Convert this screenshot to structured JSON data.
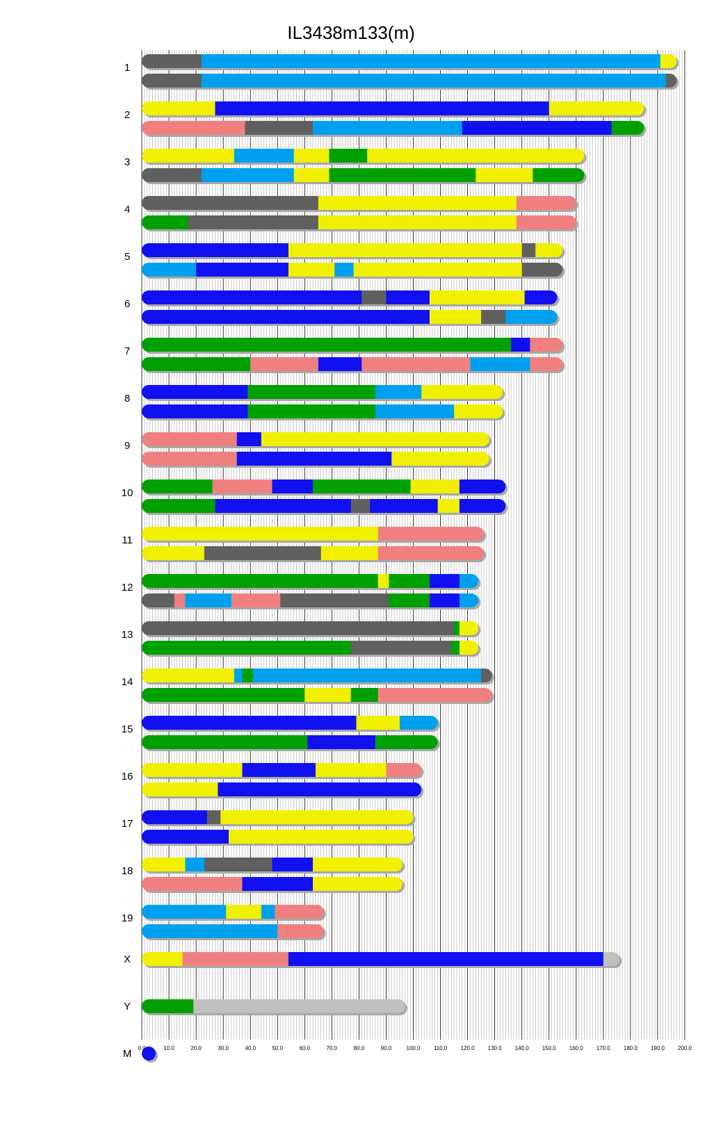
{
  "chart_data": {
    "type": "bar",
    "title": "IL3438m133(m)",
    "xlabel": "",
    "ylabel": "",
    "xlim": [
      0,
      200
    ],
    "x_ticks": [
      "0.0",
      "10.0",
      "20.0",
      "30.0",
      "40.0",
      "50.0",
      "60.0",
      "70.0",
      "80.0",
      "90.0",
      "100.0",
      "110.0",
      "120.0",
      "130.0",
      "140.0",
      "150.0",
      "160.0",
      "170.0",
      "180.0",
      "190.0",
      "200.0"
    ],
    "grid": true,
    "legend": "none",
    "colors": {
      "dgray": "#606060",
      "lblue": "#00a0f0",
      "yellow": "#f0f000",
      "blue": "#1010f0",
      "salmon": "#f08080",
      "green": "#00a000",
      "lgray": "#c0c0c0",
      "shadow": "#a8a8a8"
    },
    "chromosomes": [
      {
        "label": "1",
        "length": 197,
        "haplotypes": [
          [
            [
              0,
              22,
              "dgray"
            ],
            [
              22,
              191,
              "lblue"
            ],
            [
              191,
              197,
              "yellow"
            ]
          ],
          [
            [
              0,
              22,
              "dgray"
            ],
            [
              22,
              193,
              "lblue"
            ],
            [
              193,
              197,
              "dgray"
            ]
          ]
        ]
      },
      {
        "label": "2",
        "length": 185,
        "haplotypes": [
          [
            [
              0,
              27,
              "yellow"
            ],
            [
              27,
              150,
              "blue"
            ],
            [
              150,
              185,
              "yellow"
            ]
          ],
          [
            [
              0,
              38,
              "salmon"
            ],
            [
              38,
              63,
              "dgray"
            ],
            [
              63,
              118,
              "lblue"
            ],
            [
              118,
              173,
              "blue"
            ],
            [
              173,
              185,
              "green"
            ]
          ]
        ]
      },
      {
        "label": "3",
        "length": 163,
        "haplotypes": [
          [
            [
              0,
              34,
              "yellow"
            ],
            [
              34,
              56,
              "lblue"
            ],
            [
              56,
              69,
              "yellow"
            ],
            [
              69,
              83,
              "green"
            ],
            [
              83,
              163,
              "yellow"
            ]
          ],
          [
            [
              0,
              22,
              "dgray"
            ],
            [
              22,
              56,
              "lblue"
            ],
            [
              56,
              69,
              "yellow"
            ],
            [
              69,
              123,
              "green"
            ],
            [
              123,
              144,
              "yellow"
            ],
            [
              144,
              163,
              "green"
            ]
          ]
        ]
      },
      {
        "label": "4",
        "length": 160,
        "haplotypes": [
          [
            [
              0,
              65,
              "dgray"
            ],
            [
              65,
              138,
              "yellow"
            ],
            [
              138,
              160,
              "salmon"
            ]
          ],
          [
            [
              0,
              17,
              "green"
            ],
            [
              17,
              65,
              "dgray"
            ],
            [
              65,
              138,
              "yellow"
            ],
            [
              138,
              160,
              "salmon"
            ]
          ]
        ]
      },
      {
        "label": "5",
        "length": 155,
        "haplotypes": [
          [
            [
              0,
              54,
              "blue"
            ],
            [
              54,
              140,
              "yellow"
            ],
            [
              140,
              145,
              "dgray"
            ],
            [
              145,
              155,
              "yellow"
            ]
          ],
          [
            [
              0,
              20,
              "lblue"
            ],
            [
              20,
              54,
              "blue"
            ],
            [
              54,
              71,
              "yellow"
            ],
            [
              71,
              78,
              "lblue"
            ],
            [
              78,
              140,
              "yellow"
            ],
            [
              140,
              155,
              "dgray"
            ]
          ]
        ]
      },
      {
        "label": "6",
        "length": 153,
        "haplotypes": [
          [
            [
              0,
              81,
              "blue"
            ],
            [
              81,
              90,
              "dgray"
            ],
            [
              90,
              106,
              "blue"
            ],
            [
              106,
              141,
              "yellow"
            ],
            [
              141,
              153,
              "blue"
            ]
          ],
          [
            [
              0,
              106,
              "blue"
            ],
            [
              106,
              125,
              "yellow"
            ],
            [
              125,
              134,
              "dgray"
            ],
            [
              134,
              153,
              "lblue"
            ]
          ]
        ]
      },
      {
        "label": "7",
        "length": 155,
        "haplotypes": [
          [
            [
              0,
              136,
              "green"
            ],
            [
              136,
              143,
              "blue"
            ],
            [
              143,
              155,
              "salmon"
            ]
          ],
          [
            [
              0,
              40,
              "green"
            ],
            [
              40,
              65,
              "salmon"
            ],
            [
              65,
              81,
              "blue"
            ],
            [
              81,
              121,
              "salmon"
            ],
            [
              121,
              143,
              "lblue"
            ],
            [
              143,
              155,
              "salmon"
            ]
          ]
        ]
      },
      {
        "label": "8",
        "length": 133,
        "haplotypes": [
          [
            [
              0,
              39,
              "blue"
            ],
            [
              39,
              86,
              "green"
            ],
            [
              86,
              103,
              "lblue"
            ],
            [
              103,
              133,
              "yellow"
            ]
          ],
          [
            [
              0,
              39,
              "blue"
            ],
            [
              39,
              86,
              "green"
            ],
            [
              86,
              115,
              "lblue"
            ],
            [
              115,
              133,
              "yellow"
            ]
          ]
        ]
      },
      {
        "label": "9",
        "length": 128,
        "haplotypes": [
          [
            [
              0,
              35,
              "salmon"
            ],
            [
              35,
              44,
              "blue"
            ],
            [
              44,
              128,
              "yellow"
            ]
          ],
          [
            [
              0,
              35,
              "salmon"
            ],
            [
              35,
              92,
              "blue"
            ],
            [
              92,
              128,
              "yellow"
            ]
          ]
        ]
      },
      {
        "label": "10",
        "length": 134,
        "haplotypes": [
          [
            [
              0,
              26,
              "green"
            ],
            [
              26,
              48,
              "salmon"
            ],
            [
              48,
              63,
              "blue"
            ],
            [
              63,
              99,
              "green"
            ],
            [
              99,
              117,
              "yellow"
            ],
            [
              117,
              134,
              "blue"
            ]
          ],
          [
            [
              0,
              27,
              "green"
            ],
            [
              27,
              77,
              "blue"
            ],
            [
              77,
              84,
              "dgray"
            ],
            [
              84,
              109,
              "blue"
            ],
            [
              109,
              117,
              "yellow"
            ],
            [
              117,
              134,
              "blue"
            ]
          ]
        ]
      },
      {
        "label": "11",
        "length": 126,
        "haplotypes": [
          [
            [
              0,
              87,
              "yellow"
            ],
            [
              87,
              126,
              "salmon"
            ]
          ],
          [
            [
              0,
              23,
              "yellow"
            ],
            [
              23,
              66,
              "dgray"
            ],
            [
              66,
              87,
              "yellow"
            ],
            [
              87,
              126,
              "salmon"
            ]
          ]
        ]
      },
      {
        "label": "12",
        "length": 124,
        "haplotypes": [
          [
            [
              0,
              87,
              "green"
            ],
            [
              87,
              91,
              "yellow"
            ],
            [
              91,
              106,
              "green"
            ],
            [
              106,
              117,
              "blue"
            ],
            [
              117,
              124,
              "lblue"
            ]
          ],
          [
            [
              0,
              12,
              "dgray"
            ],
            [
              12,
              16,
              "salmon"
            ],
            [
              16,
              33,
              "lblue"
            ],
            [
              33,
              51,
              "salmon"
            ],
            [
              51,
              91,
              "dgray"
            ],
            [
              91,
              106,
              "green"
            ],
            [
              106,
              117,
              "blue"
            ],
            [
              117,
              124,
              "lblue"
            ]
          ]
        ]
      },
      {
        "label": "13",
        "length": 124,
        "haplotypes": [
          [
            [
              0,
              115,
              "dgray"
            ],
            [
              115,
              117,
              "green"
            ],
            [
              117,
              124,
              "yellow"
            ]
          ],
          [
            [
              0,
              77,
              "green"
            ],
            [
              77,
              114,
              "dgray"
            ],
            [
              114,
              117,
              "green"
            ],
            [
              117,
              124,
              "yellow"
            ]
          ]
        ]
      },
      {
        "label": "14",
        "length": 129,
        "haplotypes": [
          [
            [
              0,
              34,
              "yellow"
            ],
            [
              34,
              37,
              "lblue"
            ],
            [
              37,
              41,
              "green"
            ],
            [
              41,
              125,
              "lblue"
            ],
            [
              125,
              129,
              "dgray"
            ]
          ],
          [
            [
              0,
              60,
              "green"
            ],
            [
              60,
              77,
              "yellow"
            ],
            [
              77,
              87,
              "green"
            ],
            [
              87,
              129,
              "salmon"
            ]
          ]
        ]
      },
      {
        "label": "15",
        "length": 109,
        "haplotypes": [
          [
            [
              0,
              79,
              "blue"
            ],
            [
              79,
              95,
              "yellow"
            ],
            [
              95,
              109,
              "lblue"
            ]
          ],
          [
            [
              0,
              61,
              "green"
            ],
            [
              61,
              86,
              "blue"
            ],
            [
              86,
              109,
              "green"
            ]
          ]
        ]
      },
      {
        "label": "16",
        "length": 103,
        "haplotypes": [
          [
            [
              0,
              37,
              "yellow"
            ],
            [
              37,
              64,
              "blue"
            ],
            [
              64,
              90,
              "yellow"
            ],
            [
              90,
              103,
              "salmon"
            ]
          ],
          [
            [
              0,
              28,
              "yellow"
            ],
            [
              28,
              103,
              "blue"
            ]
          ]
        ]
      },
      {
        "label": "17",
        "length": 100,
        "haplotypes": [
          [
            [
              0,
              24,
              "blue"
            ],
            [
              24,
              29,
              "dgray"
            ],
            [
              29,
              100,
              "yellow"
            ]
          ],
          [
            [
              0,
              32,
              "blue"
            ],
            [
              32,
              100,
              "yellow"
            ]
          ]
        ]
      },
      {
        "label": "18",
        "length": 96,
        "haplotypes": [
          [
            [
              0,
              16,
              "yellow"
            ],
            [
              16,
              23,
              "lblue"
            ],
            [
              23,
              48,
              "dgray"
            ],
            [
              48,
              63,
              "blue"
            ],
            [
              63,
              96,
              "yellow"
            ]
          ],
          [
            [
              0,
              37,
              "salmon"
            ],
            [
              37,
              63,
              "blue"
            ],
            [
              63,
              96,
              "yellow"
            ]
          ]
        ]
      },
      {
        "label": "19",
        "length": 67,
        "haplotypes": [
          [
            [
              0,
              31,
              "lblue"
            ],
            [
              31,
              44,
              "yellow"
            ],
            [
              44,
              49,
              "lblue"
            ],
            [
              49,
              67,
              "salmon"
            ]
          ],
          [
            [
              0,
              50,
              "lblue"
            ],
            [
              50,
              67,
              "salmon"
            ]
          ]
        ]
      },
      {
        "label": "X",
        "length": 176,
        "haplotypes": [
          [
            [
              0,
              15,
              "yellow"
            ],
            [
              15,
              54,
              "salmon"
            ],
            [
              54,
              170,
              "blue"
            ],
            [
              170,
              176,
              "lgray"
            ]
          ]
        ]
      },
      {
        "label": "Y",
        "length": 97,
        "haplotypes": [
          [
            [
              0,
              19,
              "green"
            ],
            [
              19,
              97,
              "lgray"
            ]
          ]
        ]
      },
      {
        "label": "M",
        "length": 1,
        "haplotypes": [
          [
            [
              0,
              1,
              "blue"
            ]
          ]
        ]
      }
    ]
  }
}
